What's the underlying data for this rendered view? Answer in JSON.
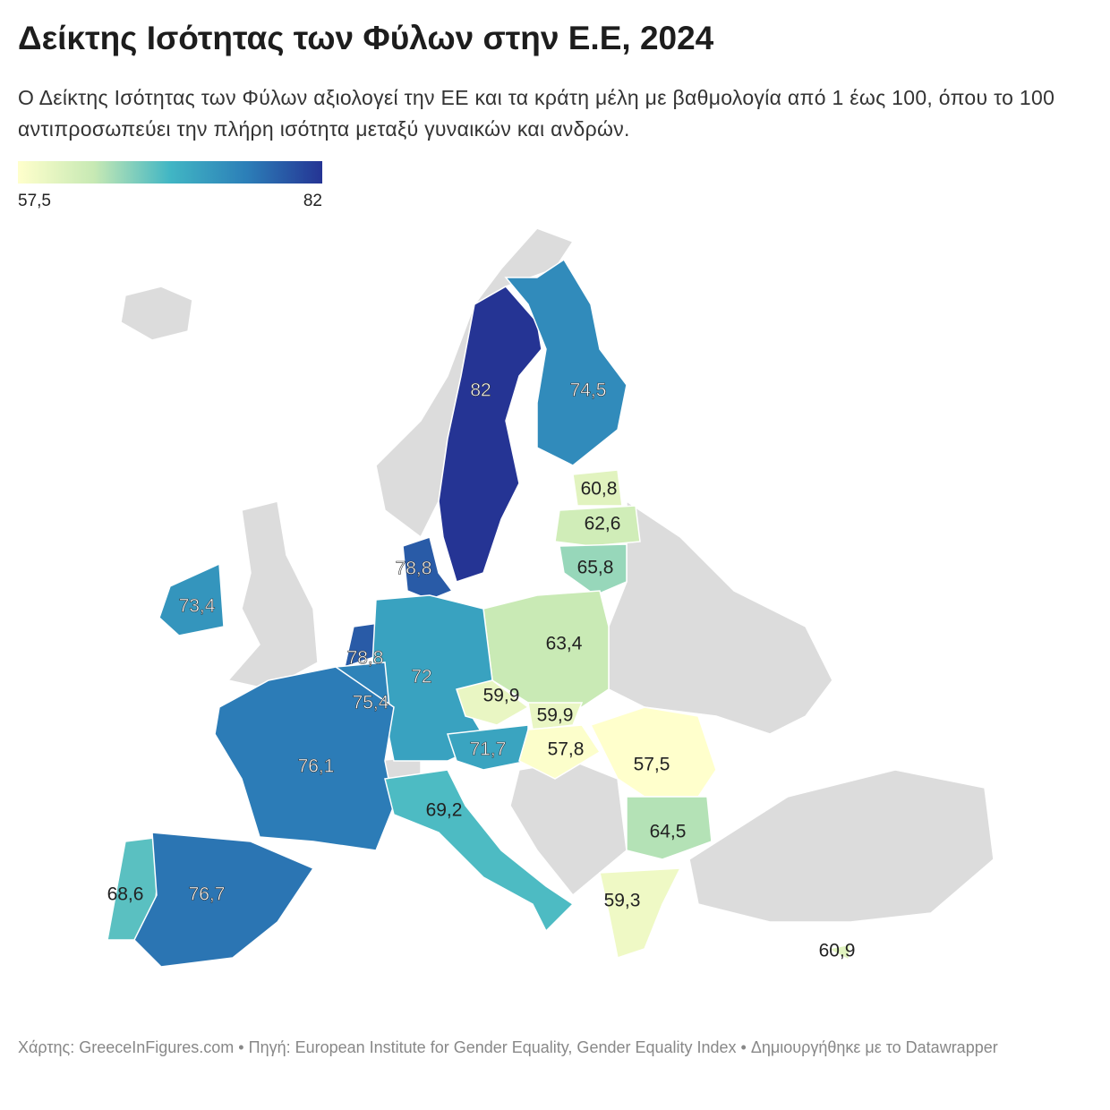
{
  "chart_data": {
    "type": "choropleth",
    "title": "Δείκτης Ισότητας των Φύλων στην Ε.Ε, 2024",
    "subtitle": "Ο Δείκτης Ισότητας των Φύλων αξιολογεί την ΕΕ και τα κράτη μέλη με βαθμολογία από 1 έως 100, όπου το 100 αντιπροσωπεύει την πλήρη ισότητα μεταξύ γυναικών και ανδρών.",
    "legend": {
      "min": {
        "value": 57.5,
        "label": "57,5"
      },
      "max": 82
    },
    "colors": [
      "#ffffcc",
      "#c7e9b4",
      "#41b6c4",
      "#2c7fb8",
      "#253494"
    ],
    "values": [
      82,
      74.5,
      60.8,
      62.6,
      65.8,
      78.8,
      73.4,
      63.4,
      78.8,
      72,
      75.4,
      59.9,
      59.9,
      76.1,
      71.7,
      57.8,
      57.5,
      69.2,
      64.5,
      68.6,
      76.7,
      59.3,
      60.9
    ],
    "value_labels": [
      "82",
      "74,5",
      "60,8",
      "62,6",
      "65,8",
      "78,8",
      "73,4",
      "63,4",
      "78,8",
      "72",
      "75,4",
      "59,9",
      "59,9",
      "76,1",
      "71,7",
      "57,8",
      "57,5",
      "69,2",
      "64,5",
      "68,6",
      "76,7",
      "59,3",
      "60,9"
    ],
    "footer": "Χάρτης: GreeceInFigures.com • Πηγή: European Institute for Gender Equality, Gender Equality Index  • Δημιουργήθηκε με το Datawrapper"
  }
}
